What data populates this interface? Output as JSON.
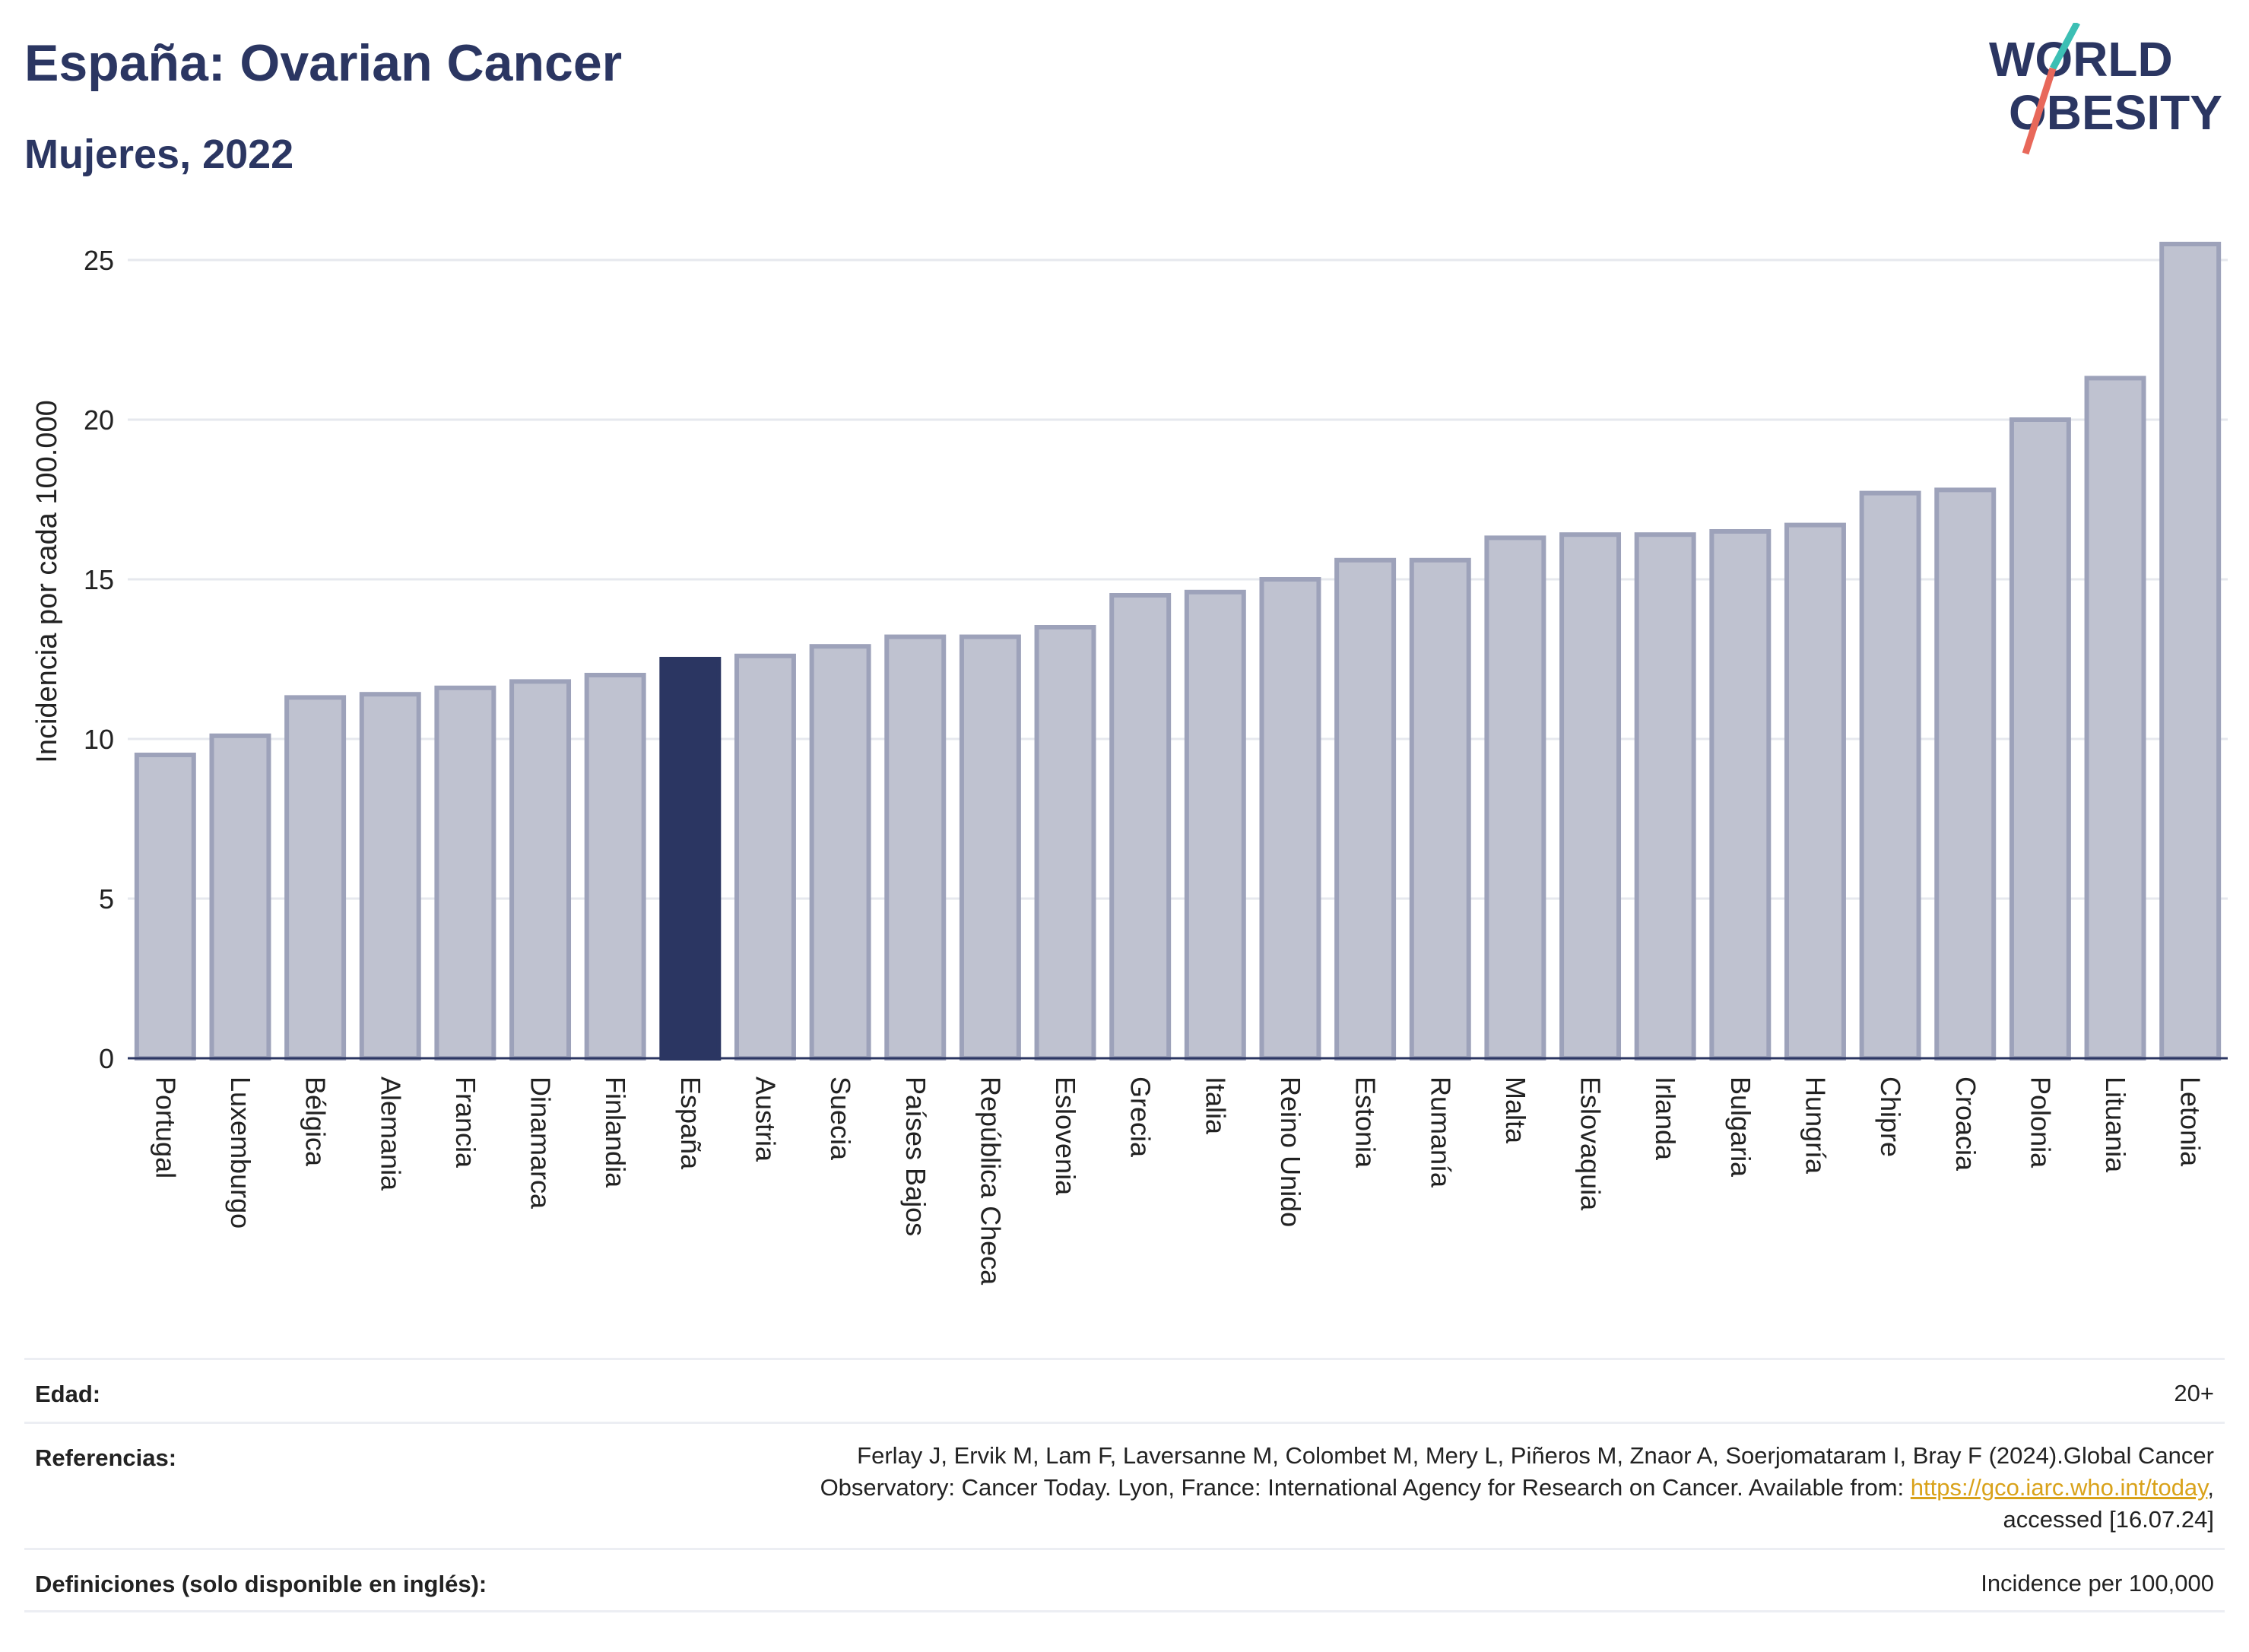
{
  "header": {
    "title": "España: Ovarian Cancer",
    "subtitle": "Mujeres, 2022"
  },
  "logo": {
    "line1": "WORLD",
    "line2": "OBESITY",
    "slash_colors": [
      "#3cbfb4",
      "#e8685a"
    ],
    "text_color": "#2b3662"
  },
  "chart_data": {
    "type": "bar",
    "ylabel": "Incidencia por cada 100.000",
    "xlabel": "",
    "ylim": [
      0,
      26
    ],
    "yticks": [
      0,
      5,
      10,
      15,
      20,
      25
    ],
    "grid": true,
    "highlight": "España",
    "colors": {
      "bar": "#bfc2d0",
      "bar_edge": "#9da2ba",
      "highlight": "#2b3662"
    },
    "categories": [
      "Portugal",
      "Luxemburgo",
      "Bélgica",
      "Alemania",
      "Francia",
      "Dinamarca",
      "Finlandia",
      "España",
      "Austria",
      "Suecia",
      "Países Bajos",
      "República Checa",
      "Eslovenia",
      "Grecia",
      "Italia",
      "Reino Unido",
      "Estonia",
      "Rumanía",
      "Malta",
      "Eslovaquia",
      "Irlanda",
      "Bulgaria",
      "Hungría",
      "Chipre",
      "Croacia",
      "Polonia",
      "Lituania",
      "Letonia"
    ],
    "values": [
      9.5,
      10.1,
      11.3,
      11.4,
      11.6,
      11.8,
      12.0,
      12.5,
      12.6,
      12.9,
      13.2,
      13.2,
      13.5,
      14.5,
      14.6,
      15.0,
      15.6,
      15.6,
      16.3,
      16.4,
      16.4,
      16.5,
      16.7,
      17.7,
      17.8,
      20.0,
      21.3,
      25.5
    ]
  },
  "metadata": {
    "age_label": "Edad:",
    "age_value": "20+",
    "references_label": "Referencias:",
    "references_line1": "Ferlay J, Ervik M, Lam F, Laversanne M, Colombet M, Mery L, Piñeros M, Znaor A, Soerjomataram I, Bray F (2024).Global Cancer",
    "references_line2_prefix": "Observatory: Cancer Today. Lyon, France: International Agency for Research on Cancer. Available from: ",
    "references_link": "https://gco.iarc.who.int/today",
    "references_line2_suffix": ",",
    "references_line3": "accessed [16.07.24]",
    "definitions_label": "Definiciones (solo disponible en inglés):",
    "definitions_value": "Incidence per 100,000"
  }
}
